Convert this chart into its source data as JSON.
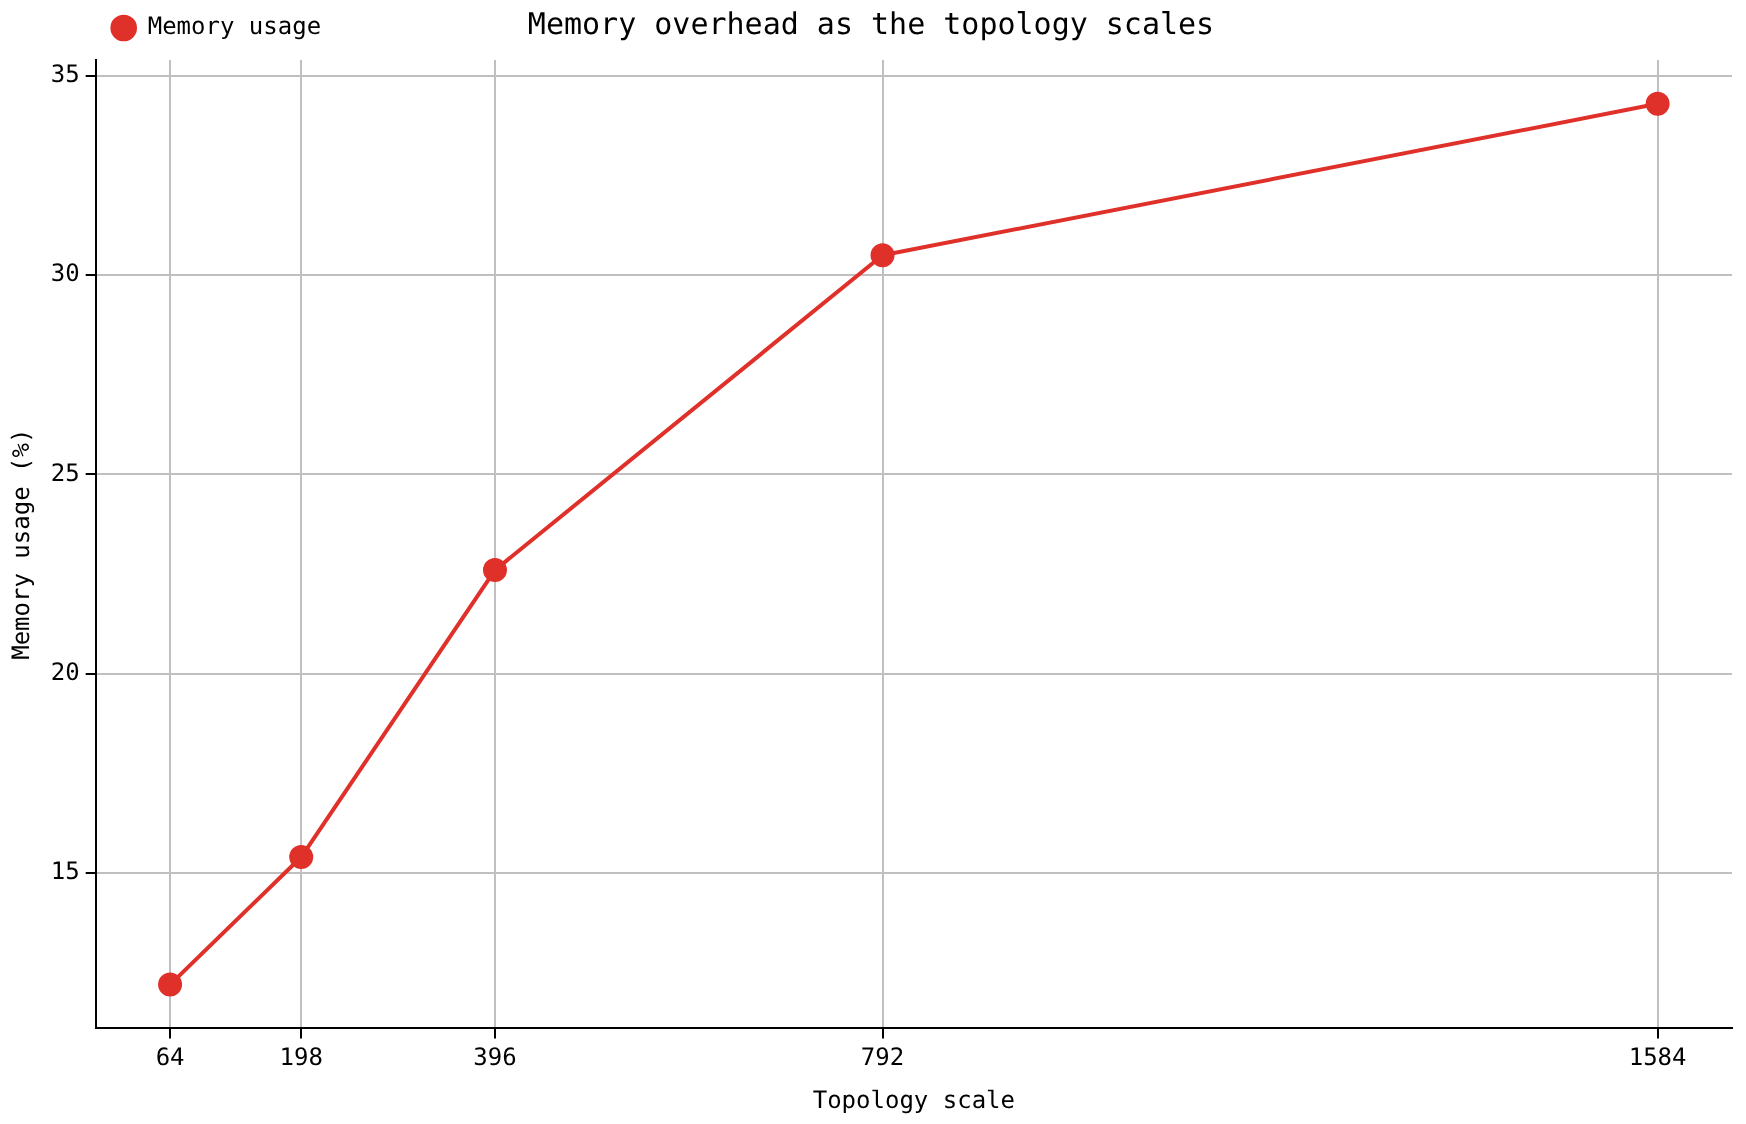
{
  "chart_data": {
    "type": "line",
    "title": "Memory overhead as the topology scales",
    "xlabel": "Topology scale",
    "ylabel": "Memory usage (%)",
    "x": [
      64,
      198,
      396,
      792,
      1584
    ],
    "series": [
      {
        "name": "Memory usage",
        "color": "#e0302a",
        "values": [
          12.2,
          15.4,
          22.6,
          30.5,
          34.3
        ]
      }
    ],
    "xlim": [
      -12,
      1660
    ],
    "xticks": [
      64,
      198,
      396,
      792,
      1584
    ],
    "ylim": [
      11.1,
      35.4
    ],
    "yticks": [
      15,
      20,
      25,
      30,
      35
    ],
    "grid": true,
    "legend": "top left",
    "marker": "circle",
    "line_style": "solid"
  }
}
